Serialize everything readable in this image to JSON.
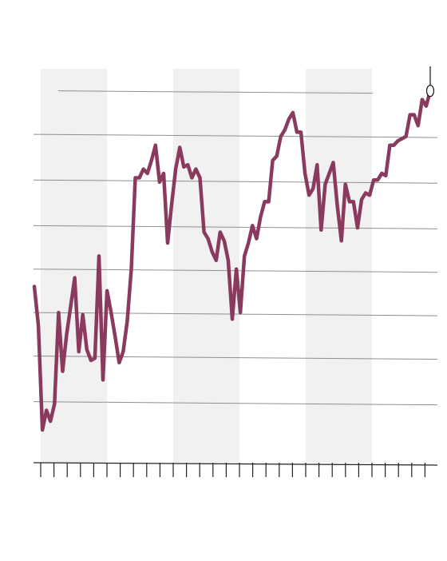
{
  "chart_data": {
    "type": "line",
    "title": "",
    "xlabel": "",
    "ylabel": "",
    "grid": true,
    "colors": {
      "line": "#8a3a5e",
      "band": "#f1f1f1",
      "gridline": "#8f8f8f",
      "axis": "#222222"
    },
    "x_ticks": 30,
    "shaded_bands_tick_ranges": [
      [
        0,
        5
      ],
      [
        10,
        15
      ],
      [
        20,
        25
      ]
    ],
    "ylim": [
      0,
      8
    ],
    "gridline_values": [
      0.65,
      1.7,
      2.7,
      3.7,
      4.7,
      5.75,
      6.8,
      7.8
    ],
    "series": [
      {
        "name": "",
        "end_marker": true,
        "values": [
          3.3,
          2.4,
          0,
          0.45,
          0.2,
          0.6,
          2.7,
          1.35,
          2.2,
          2.85,
          3.5,
          1.8,
          2.65,
          1.85,
          1.6,
          1.65,
          4.0,
          1.15,
          3.2,
          2.7,
          2.15,
          1.55,
          1.8,
          2.5,
          3.7,
          5.8,
          5.8,
          6.0,
          5.9,
          6.2,
          6.55,
          5.7,
          5.9,
          4.3,
          5.2,
          6.0,
          6.5,
          6.05,
          6.1,
          5.8,
          6.0,
          5.8,
          4.55,
          4.4,
          4.1,
          3.9,
          4.55,
          4.35,
          3.9,
          2.55,
          3.7,
          2.7,
          4.0,
          4.3,
          4.7,
          4.4,
          4.9,
          5.25,
          5.25,
          6.2,
          6.3,
          6.75,
          6.9,
          7.15,
          7.3,
          6.85,
          6.85,
          5.9,
          5.4,
          5.55,
          6.1,
          4.6,
          5.65,
          5.9,
          6.15,
          5.15,
          4.35,
          5.65,
          5.25,
          5.25,
          4.65,
          5.3,
          5.45,
          5.4,
          5.75,
          5.75,
          5.9,
          5.85,
          6.55,
          6.55,
          6.65,
          6.7,
          6.75,
          7.25,
          7.25,
          7.0,
          7.6,
          7.45,
          7.8
        ]
      }
    ]
  }
}
